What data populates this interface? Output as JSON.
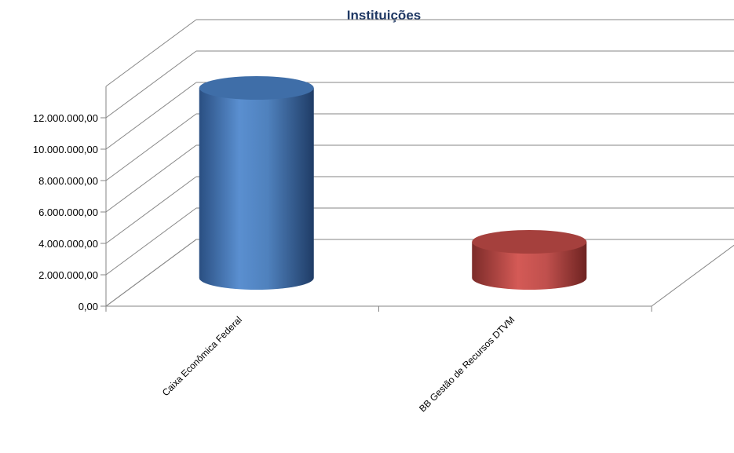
{
  "chart_data": {
    "type": "bar",
    "bar_shape": "cylinder",
    "title": "Instituições",
    "categories": [
      "Caixa Econômica Federal",
      "BB Gestão de Recursos DTVM"
    ],
    "series": [
      {
        "values": [
          12100000,
          2300000
        ],
        "colors": [
          "#4f81bd",
          "#c0504d"
        ]
      }
    ],
    "yticks": [
      "0,00",
      "2.000.000,00",
      "4.000.000,00",
      "6.000.000,00",
      "8.000.000,00",
      "10.000.000,00",
      "12.000.000,00"
    ],
    "ylim": [
      0,
      12000000
    ],
    "grid": true,
    "legend": "none"
  }
}
